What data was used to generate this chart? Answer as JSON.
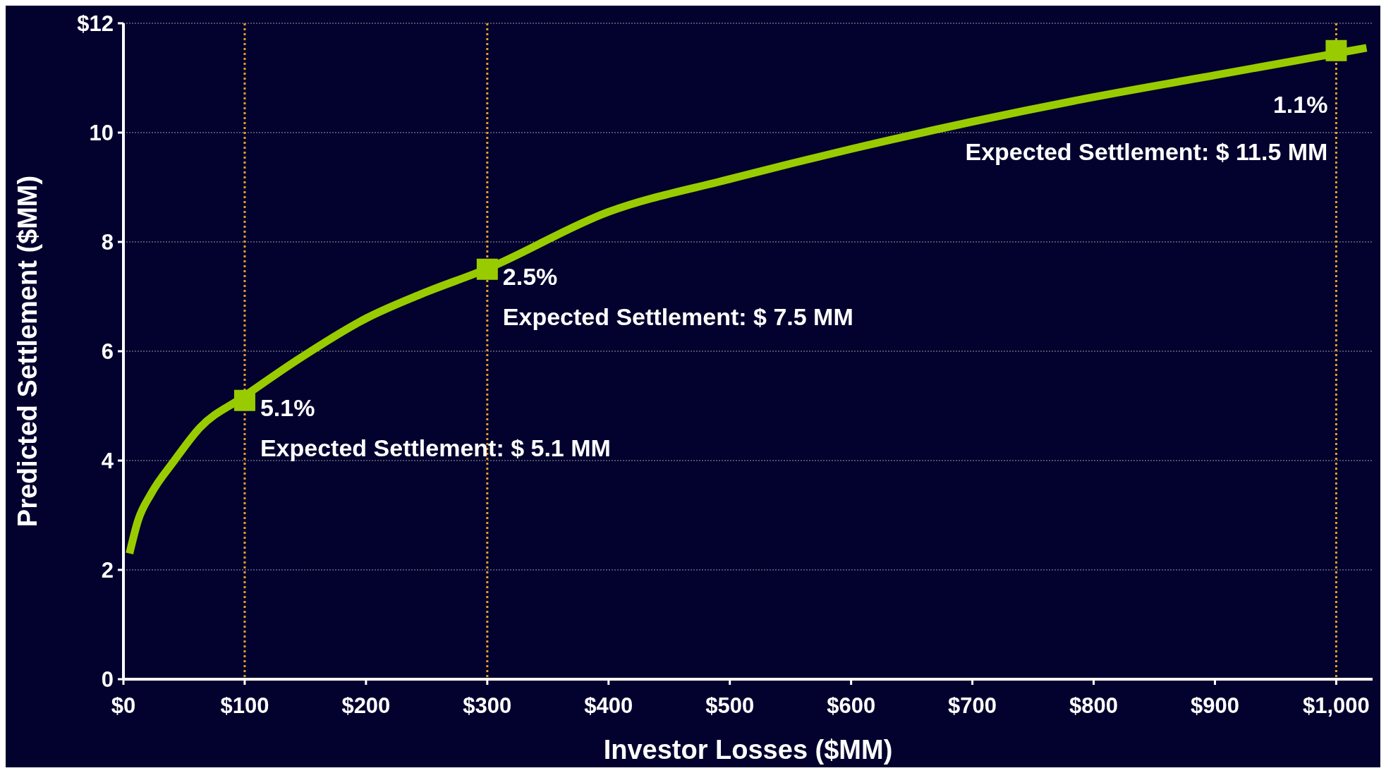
{
  "chart_data": {
    "type": "line",
    "xlabel": "Investor Losses ($MM)",
    "ylabel": "Predicted Settlement ($MM)",
    "xlim": [
      0,
      1030
    ],
    "ylim": [
      0,
      12
    ],
    "xticks": [
      {
        "value": 0,
        "label": "$0"
      },
      {
        "value": 100,
        "label": "$100"
      },
      {
        "value": 200,
        "label": "$200"
      },
      {
        "value": 300,
        "label": "$300"
      },
      {
        "value": 400,
        "label": "$400"
      },
      {
        "value": 500,
        "label": "$500"
      },
      {
        "value": 600,
        "label": "$600"
      },
      {
        "value": 700,
        "label": "$700"
      },
      {
        "value": 800,
        "label": "$800"
      },
      {
        "value": 900,
        "label": "$900"
      },
      {
        "value": 1000,
        "label": "$1,000"
      }
    ],
    "yticks": [
      0,
      2,
      4,
      6,
      8,
      10,
      {
        "value": 12,
        "label": "$12"
      }
    ],
    "grid": "y",
    "series": [
      {
        "color": "#99cc00",
        "marker": "none",
        "x": [
          5,
          12,
          23,
          42,
          63,
          98,
          144,
          200,
          246,
          299,
          400,
          500,
          600,
          700,
          800,
          900,
          1000,
          1025
        ],
        "values": [
          2.3,
          2.9,
          3.4,
          4.0,
          4.6,
          5.15,
          5.85,
          6.6,
          7.05,
          7.5,
          8.55,
          9.15,
          9.7,
          10.2,
          10.65,
          11.05,
          11.45,
          11.55
        ]
      },
      {
        "type": "scatter",
        "color": "#99cc00",
        "marker": "square",
        "x": [
          100,
          300,
          1000
        ],
        "values": [
          5.1,
          7.5,
          11.5
        ]
      }
    ],
    "ref_lines": [
      {
        "axis": "x",
        "value": 100,
        "color": "#e8a020",
        "line_style": "dotted"
      },
      {
        "axis": "x",
        "value": 300,
        "color": "#e8a020",
        "line_style": "dotted"
      },
      {
        "axis": "x",
        "value": 1000,
        "color": "#e8a020",
        "line_style": "dotted"
      }
    ],
    "annotations": [
      {
        "text": "5.1%",
        "x": 100,
        "y": 5.1
      },
      "Expected Settlement: $ 5.1 MM",
      {
        "text": "2.5%",
        "x": 300,
        "y": 7.5
      },
      "Expected Settlement: $ 7.5 MM",
      {
        "text": "1.1%",
        "x": 1000,
        "y": 11.5
      },
      "Expected Settlement: $ 11.5 MM"
    ]
  }
}
